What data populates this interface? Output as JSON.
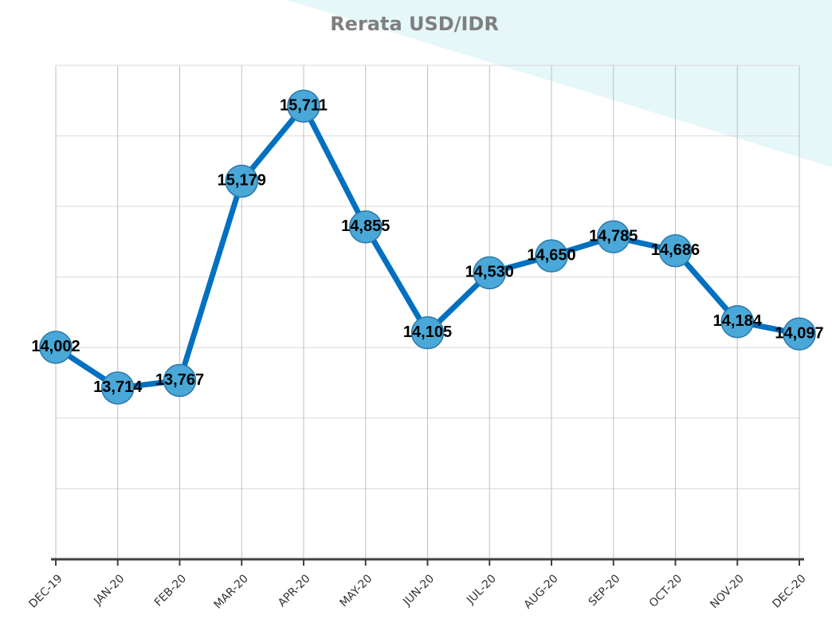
{
  "chart_data": {
    "type": "line",
    "title": "Rerata USD/IDR",
    "categories": [
      "DEC-19",
      "JAN-20",
      "FEB-20",
      "MAR-20",
      "APR-20",
      "MAY-20",
      "JUN-20",
      "JUL-20",
      "AUG-20",
      "SEP-20",
      "OCT-20",
      "NOV-20",
      "DEC-20"
    ],
    "series": [
      {
        "name": "Rerata USD/IDR",
        "color": "#0070c0",
        "values": [
          14002,
          13714,
          13767,
          15179,
          15711,
          14855,
          14105,
          14530,
          14650,
          14785,
          14686,
          14184,
          14097
        ],
        "value_labels": [
          "14,002",
          "13,714",
          "13,767",
          "15,179",
          "15,711",
          "14,855",
          "14,105",
          "14,530",
          "14,650",
          "14,785",
          "14,686",
          "14,184",
          "14,097"
        ]
      }
    ],
    "ylim": [
      12500,
      16000
    ],
    "yticks": [
      12500,
      13000,
      13500,
      14000,
      14500,
      15000,
      15500,
      16000
    ],
    "grid": true
  }
}
